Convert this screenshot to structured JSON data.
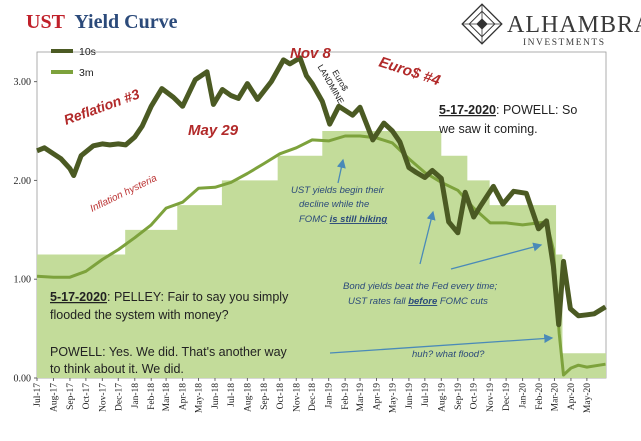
{
  "header": {
    "title_accent": "UST",
    "title_rest": "Yield Curve",
    "logo_name": "ALHAMBRA",
    "logo_sub": "INVESTMENTS"
  },
  "colors": {
    "series_10s": "#4b5a23",
    "series_3m": "#7da23c",
    "fed_funds_fill": "#c3dc9a",
    "annotation_red": "#b22a2a",
    "annotation_blue": "#2b4a7a",
    "arrow_blue": "#4a8ab8"
  },
  "chart_data": {
    "type": "line",
    "x": [
      "2017-07",
      "2017-08",
      "2017-09",
      "2017-10",
      "2017-11",
      "2017-12",
      "2018-01",
      "2018-02",
      "2018-03",
      "2018-04",
      "2018-05",
      "2018-06",
      "2018-07",
      "2018-08",
      "2018-09",
      "2018-10",
      "2018-11",
      "2018-12",
      "2019-01",
      "2019-02",
      "2019-03",
      "2019-04",
      "2019-05",
      "2019-06",
      "2019-07",
      "2019-08",
      "2019-09",
      "2019-10",
      "2019-11",
      "2019-12",
      "2020-01",
      "2020-02",
      "2020-03",
      "2020-04",
      "2020-05",
      "2020-06"
    ],
    "x_tick_labels": [
      "Jul-17",
      "Aug-17",
      "Sep-17",
      "Oct-17",
      "Nov-17",
      "Dec-17",
      "Jan-18",
      "Feb-18",
      "Mar-18",
      "Apr-18",
      "May-18",
      "Jun-18",
      "Jul-18",
      "Aug-18",
      "Sep-18",
      "Oct-18",
      "Nov-18",
      "Dec-18",
      "Jan-19",
      "Feb-19",
      "Mar-19",
      "Apr-19",
      "May-19",
      "Jun-19",
      "Jul-19",
      "Aug-19",
      "Sep-19",
      "Oct-19",
      "Nov-19",
      "Dec-19",
      "Jan-20",
      "Feb-20",
      "Mar-20",
      "Apr-20",
      "May-20"
    ],
    "y_ticks": [
      "0.00",
      "1.00",
      "2.00",
      "3.00"
    ],
    "ylim": [
      0,
      3.3
    ],
    "series": [
      {
        "name": "10s",
        "points": [
          [
            "2017-07-01",
            2.3
          ],
          [
            "2017-07-15",
            2.33
          ],
          [
            "2017-08-01",
            2.27
          ],
          [
            "2017-08-15",
            2.22
          ],
          [
            "2017-09-01",
            2.12
          ],
          [
            "2017-09-08",
            2.05
          ],
          [
            "2017-09-22",
            2.25
          ],
          [
            "2017-10-15",
            2.35
          ],
          [
            "2017-11-01",
            2.37
          ],
          [
            "2017-11-15",
            2.36
          ],
          [
            "2017-12-01",
            2.37
          ],
          [
            "2017-12-15",
            2.36
          ],
          [
            "2018-01-01",
            2.44
          ],
          [
            "2018-01-15",
            2.55
          ],
          [
            "2018-02-01",
            2.75
          ],
          [
            "2018-02-21",
            2.93
          ],
          [
            "2018-03-15",
            2.84
          ],
          [
            "2018-04-01",
            2.75
          ],
          [
            "2018-04-25",
            3.02
          ],
          [
            "2018-05-17",
            3.1
          ],
          [
            "2018-05-29",
            2.77
          ],
          [
            "2018-06-15",
            2.92
          ],
          [
            "2018-07-01",
            2.86
          ],
          [
            "2018-07-15",
            2.83
          ],
          [
            "2018-08-01",
            2.98
          ],
          [
            "2018-08-20",
            2.82
          ],
          [
            "2018-09-15",
            3.0
          ],
          [
            "2018-10-08",
            3.22
          ],
          [
            "2018-10-20",
            3.18
          ],
          [
            "2018-11-08",
            3.24
          ],
          [
            "2018-11-20",
            3.06
          ],
          [
            "2018-12-01",
            2.98
          ],
          [
            "2018-12-20",
            2.8
          ],
          [
            "2019-01-03",
            2.57
          ],
          [
            "2019-01-20",
            2.75
          ],
          [
            "2019-02-15",
            2.66
          ],
          [
            "2019-03-01",
            2.74
          ],
          [
            "2019-03-25",
            2.41
          ],
          [
            "2019-04-15",
            2.58
          ],
          [
            "2019-05-01",
            2.5
          ],
          [
            "2019-05-15",
            2.39
          ],
          [
            "2019-06-01",
            2.13
          ],
          [
            "2019-06-15",
            2.08
          ],
          [
            "2019-07-01",
            2.03
          ],
          [
            "2019-07-15",
            2.1
          ],
          [
            "2019-08-01",
            2.02
          ],
          [
            "2019-08-15",
            1.58
          ],
          [
            "2019-09-01",
            1.47
          ],
          [
            "2019-09-15",
            1.88
          ],
          [
            "2019-10-01",
            1.63
          ],
          [
            "2019-10-15",
            1.75
          ],
          [
            "2019-11-07",
            1.94
          ],
          [
            "2019-11-25",
            1.76
          ],
          [
            "2019-12-15",
            1.89
          ],
          [
            "2020-01-08",
            1.87
          ],
          [
            "2020-01-31",
            1.51
          ],
          [
            "2020-02-15",
            1.59
          ],
          [
            "2020-02-28",
            1.13
          ],
          [
            "2020-03-09",
            0.54
          ],
          [
            "2020-03-18",
            1.18
          ],
          [
            "2020-03-31",
            0.7
          ],
          [
            "2020-04-15",
            0.63
          ],
          [
            "2020-05-01",
            0.64
          ],
          [
            "2020-05-15",
            0.65
          ],
          [
            "2020-06-05",
            0.72
          ]
        ]
      },
      {
        "name": "3m",
        "points": [
          [
            "2017-07-01",
            1.03
          ],
          [
            "2017-08-01",
            1.02
          ],
          [
            "2017-09-01",
            1.02
          ],
          [
            "2017-10-01",
            1.08
          ],
          [
            "2017-11-01",
            1.2
          ],
          [
            "2017-12-01",
            1.3
          ],
          [
            "2018-01-01",
            1.42
          ],
          [
            "2018-02-01",
            1.55
          ],
          [
            "2018-03-01",
            1.72
          ],
          [
            "2018-04-01",
            1.78
          ],
          [
            "2018-05-01",
            1.92
          ],
          [
            "2018-06-01",
            1.93
          ],
          [
            "2018-07-01",
            1.98
          ],
          [
            "2018-08-01",
            2.07
          ],
          [
            "2018-09-01",
            2.17
          ],
          [
            "2018-10-01",
            2.27
          ],
          [
            "2018-11-01",
            2.33
          ],
          [
            "2018-12-01",
            2.41
          ],
          [
            "2019-01-01",
            2.4
          ],
          [
            "2019-02-01",
            2.45
          ],
          [
            "2019-03-01",
            2.45
          ],
          [
            "2019-04-01",
            2.43
          ],
          [
            "2019-05-01",
            2.38
          ],
          [
            "2019-06-01",
            2.22
          ],
          [
            "2019-07-01",
            2.08
          ],
          [
            "2019-08-01",
            1.98
          ],
          [
            "2019-09-01",
            1.9
          ],
          [
            "2019-10-01",
            1.72
          ],
          [
            "2019-11-01",
            1.57
          ],
          [
            "2019-12-01",
            1.57
          ],
          [
            "2020-01-01",
            1.55
          ],
          [
            "2020-02-15",
            1.58
          ],
          [
            "2020-02-28",
            1.3
          ],
          [
            "2020-03-10",
            0.45
          ],
          [
            "2020-03-18",
            0.03
          ],
          [
            "2020-04-01",
            0.1
          ],
          [
            "2020-04-15",
            0.13
          ],
          [
            "2020-05-01",
            0.11
          ],
          [
            "2020-06-05",
            0.14
          ]
        ]
      }
    ],
    "fed_funds_steps": [
      [
        "2017-07-01",
        1.25
      ],
      [
        "2017-12-14",
        1.5
      ],
      [
        "2018-03-22",
        1.75
      ],
      [
        "2018-06-14",
        2.0
      ],
      [
        "2018-09-27",
        2.25
      ],
      [
        "2018-12-20",
        2.5
      ],
      [
        "2019-08-01",
        2.25
      ],
      [
        "2019-09-19",
        2.0
      ],
      [
        "2019-10-31",
        1.75
      ],
      [
        "2020-03-04",
        1.25
      ],
      [
        "2020-03-16",
        0.25
      ],
      [
        "2020-06-05",
        0.25
      ]
    ],
    "annotations": {
      "reflation3": "Reflation #3",
      "may29": "May 29",
      "nov8": "Nov 8",
      "euros_landmine_1": "Euro$",
      "euros_landmine_2": "LANDMINE",
      "euros4": "Euro$ #4",
      "inflation_hysteria": "Inflation hysteria",
      "fomc_hiking_1": "UST yields begin their",
      "fomc_hiking_2": "decline while the",
      "fomc_hiking_3_pre": "FOMC ",
      "fomc_hiking_3_em": "is still hiking",
      "bond_beat_1": "Bond yields beat the Fed every time;",
      "bond_beat_2_pre": "UST rates fall ",
      "bond_beat_2_em": "before",
      "bond_beat_2_post": " FOMC cuts",
      "huh": "huh? what flood?"
    },
    "quotes": {
      "powell_top_date": "5-17-2020",
      "powell_top_line1": ":  POWELL: So",
      "powell_top_line2": "we saw it coming.",
      "pelley_date": "5-17-2020",
      "pelley_line1": ":  PELLEY: Fair to say you simply",
      "pelley_line2": "flooded the system with money?",
      "powell_line1": "POWELL: Yes. We did. That's another way",
      "powell_line2": "to think about it. We did."
    }
  }
}
